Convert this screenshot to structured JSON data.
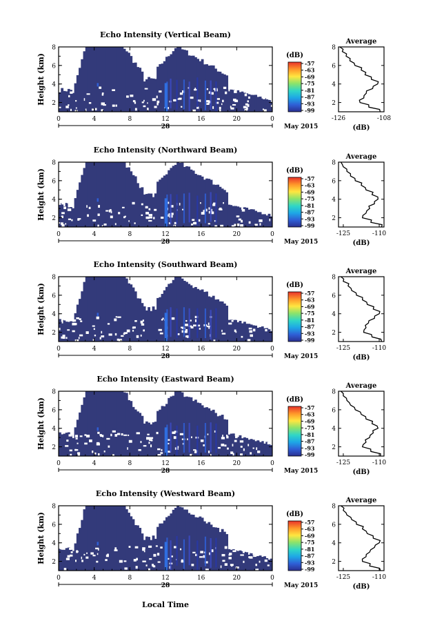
{
  "figure": {
    "xlabel": "Local Time",
    "date_label": "May 2015",
    "day_label": "28",
    "cbar_unit": "(dB)",
    "avg_title": "Average",
    "avg_xlabel": "(dB)"
  },
  "chart_data": [
    {
      "type": "heatmap",
      "title": "Echo Intensity (Vertical Beam)",
      "ylabel": "Height (km)",
      "xlabel": "",
      "x_ticks": [
        "0",
        "4",
        "8",
        "12",
        "16",
        "20",
        "0"
      ],
      "xlim": [
        0,
        24
      ],
      "y_ticks": [
        "2",
        "4",
        "6",
        "8"
      ],
      "ylim": [
        1,
        8
      ],
      "colorbar": {
        "label": "(dB)",
        "ticks": [
          "-57",
          "-63",
          "-69",
          "-75",
          "-81",
          "-87",
          "-93",
          "-99"
        ],
        "range": [
          -99,
          -57
        ]
      },
      "average_profile": {
        "title": "Average",
        "xlabel": "(dB)",
        "x_ticks": [
          "-126",
          "-108"
        ],
        "xlim": [
          -126,
          -108
        ],
        "y_ticks": [
          "2",
          "4",
          "6",
          "8"
        ],
        "height_km": [
          1.0,
          1.5,
          2.0,
          2.5,
          3.0,
          3.5,
          4.0,
          4.5,
          5.0,
          5.5,
          6.0,
          6.5,
          7.0,
          7.5,
          8.0
        ],
        "value_db": [
          -109.5,
          -114.0,
          -117.5,
          -116.0,
          -115.0,
          -112.5,
          -110.5,
          -113.0,
          -115.5,
          -117.0,
          -119.5,
          -121.5,
          -123.0,
          -124.5,
          -125.5
        ]
      }
    },
    {
      "type": "heatmap",
      "title": "Echo Intensity (Northward Beam)",
      "ylabel": "Height (km)",
      "xlabel": "",
      "x_ticks": [
        "0",
        "4",
        "8",
        "12",
        "16",
        "20",
        "0"
      ],
      "xlim": [
        0,
        24
      ],
      "y_ticks": [
        "2",
        "4",
        "6",
        "8"
      ],
      "ylim": [
        1,
        8
      ],
      "colorbar": {
        "label": "(dB)",
        "ticks": [
          "-57",
          "-63",
          "-69",
          "-75",
          "-81",
          "-87",
          "-93",
          "-99"
        ],
        "range": [
          -99,
          -57
        ]
      },
      "average_profile": {
        "title": "Average",
        "xlabel": "(dB)",
        "x_ticks": [
          "-125",
          "-110"
        ],
        "xlim": [
          -127,
          -108
        ],
        "y_ticks": [
          "2",
          "4",
          "6",
          "8"
        ],
        "height_km": [
          1.0,
          1.5,
          2.0,
          2.5,
          3.0,
          3.5,
          4.0,
          4.5,
          5.0,
          5.5,
          6.0,
          6.5,
          7.0,
          7.5,
          8.0
        ],
        "value_db": [
          -109.0,
          -113.5,
          -117.0,
          -115.5,
          -114.0,
          -112.0,
          -110.5,
          -113.0,
          -115.5,
          -117.5,
          -120.0,
          -122.0,
          -123.5,
          -125.0,
          -126.0
        ]
      }
    },
    {
      "type": "heatmap",
      "title": "Echo Intensity (Southward Beam)",
      "ylabel": "Height (km)",
      "xlabel": "",
      "x_ticks": [
        "0",
        "4",
        "8",
        "12",
        "16",
        "20",
        "0"
      ],
      "xlim": [
        0,
        24
      ],
      "y_ticks": [
        "2",
        "4",
        "6",
        "8"
      ],
      "ylim": [
        1,
        8
      ],
      "colorbar": {
        "label": "(dB)",
        "ticks": [
          "-57",
          "-63",
          "-69",
          "-75",
          "-81",
          "-87",
          "-93",
          "-99"
        ],
        "range": [
          -99,
          -57
        ]
      },
      "average_profile": {
        "title": "Average",
        "xlabel": "(dB)",
        "x_ticks": [
          "-125",
          "-110"
        ],
        "xlim": [
          -127,
          -108
        ],
        "y_ticks": [
          "2",
          "4",
          "6",
          "8"
        ],
        "height_km": [
          1.0,
          1.5,
          2.0,
          2.5,
          3.0,
          3.5,
          4.0,
          4.5,
          5.0,
          5.5,
          6.0,
          6.5,
          7.0,
          7.5,
          8.0
        ],
        "value_db": [
          -109.0,
          -113.0,
          -116.5,
          -115.5,
          -114.5,
          -112.0,
          -110.0,
          -112.5,
          -115.0,
          -117.0,
          -119.5,
          -121.5,
          -123.0,
          -125.0,
          -126.0
        ]
      }
    },
    {
      "type": "heatmap",
      "title": "Echo Intensity (Eastward Beam)",
      "ylabel": "Height (km)",
      "xlabel": "",
      "x_ticks": [
        "0",
        "4",
        "8",
        "12",
        "16",
        "20",
        "0"
      ],
      "xlim": [
        0,
        24
      ],
      "y_ticks": [
        "2",
        "4",
        "6",
        "8"
      ],
      "ylim": [
        1,
        8
      ],
      "colorbar": {
        "label": "(dB)",
        "ticks": [
          "-57",
          "-63",
          "-69",
          "-75",
          "-81",
          "-87",
          "-93",
          "-99"
        ],
        "range": [
          -99,
          -57
        ]
      },
      "average_profile": {
        "title": "Average",
        "xlabel": "(dB)",
        "x_ticks": [
          "-125",
          "-110"
        ],
        "xlim": [
          -127,
          -108
        ],
        "y_ticks": [
          "2",
          "4",
          "6",
          "8"
        ],
        "height_km": [
          1.0,
          1.5,
          2.0,
          2.5,
          3.0,
          3.5,
          4.0,
          4.5,
          5.0,
          5.5,
          6.0,
          6.5,
          7.0,
          7.5,
          8.0
        ],
        "value_db": [
          -109.5,
          -113.5,
          -117.0,
          -115.5,
          -114.0,
          -112.5,
          -110.5,
          -113.0,
          -115.5,
          -117.5,
          -120.0,
          -122.0,
          -123.5,
          -125.0,
          -126.0
        ]
      }
    },
    {
      "type": "heatmap",
      "title": "Echo Intensity (Westward Beam)",
      "ylabel": "Height (km)",
      "xlabel": "Local Time",
      "x_ticks": [
        "0",
        "4",
        "8",
        "12",
        "16",
        "20",
        "0"
      ],
      "xlim": [
        0,
        24
      ],
      "y_ticks": [
        "2",
        "4",
        "6",
        "8"
      ],
      "ylim": [
        1,
        8
      ],
      "colorbar": {
        "label": "(dB)",
        "ticks": [
          "-57",
          "-63",
          "-69",
          "-75",
          "-81",
          "-87",
          "-93",
          "-99"
        ],
        "range": [
          -99,
          -57
        ]
      },
      "average_profile": {
        "title": "Average",
        "xlabel": "(dB)",
        "x_ticks": [
          "-125",
          "-110"
        ],
        "xlim": [
          -127,
          -108
        ],
        "y_ticks": [
          "2",
          "4",
          "6",
          "8"
        ],
        "height_km": [
          1.0,
          1.5,
          2.0,
          2.5,
          3.0,
          3.5,
          4.0,
          4.5,
          5.0,
          5.5,
          6.0,
          6.5,
          7.0,
          7.5,
          8.0
        ],
        "value_db": [
          -109.5,
          -114.0,
          -117.0,
          -115.5,
          -114.0,
          -112.0,
          -110.0,
          -112.5,
          -115.0,
          -117.0,
          -119.5,
          -121.5,
          -123.5,
          -125.0,
          -126.0
        ]
      }
    }
  ],
  "colors": {
    "background_field": "#333a7a",
    "colormap": [
      "#2a2f8f",
      "#2f5fd6",
      "#1ea7e6",
      "#2fd6c7",
      "#8de36a",
      "#ffe640",
      "#ff9a2a",
      "#e8322a"
    ]
  }
}
